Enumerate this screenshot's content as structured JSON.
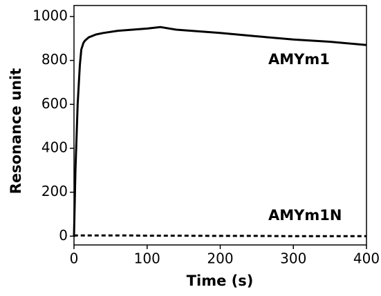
{
  "chart_data": {
    "type": "line",
    "xlabel": "Time (s)",
    "ylabel": "Resonance unit",
    "x": [
      0,
      2,
      5,
      8,
      10,
      13,
      15,
      20,
      30,
      40,
      60,
      80,
      100,
      118,
      140,
      200,
      250,
      300,
      350,
      400
    ],
    "series": [
      {
        "name": "AMYm1",
        "color": "#000000",
        "linestyle": "solid",
        "values": [
          0,
          300,
          600,
          780,
          850,
          880,
          890,
          905,
          918,
          925,
          935,
          940,
          945,
          952,
          940,
          925,
          910,
          895,
          885,
          870
        ]
      },
      {
        "name": "AMYm1N",
        "color": "#000000",
        "linestyle": "dashed",
        "values": [
          0,
          3,
          3,
          3,
          3,
          3,
          3,
          3,
          3,
          3,
          3,
          3,
          2,
          2,
          2,
          1,
          1,
          0,
          0,
          0
        ]
      }
    ],
    "xlim": [
      0,
      400
    ],
    "xticks": [
      0,
      100,
      200,
      300,
      400
    ],
    "ylim": [
      -40,
      1050
    ],
    "yticks": [
      0,
      200,
      400,
      600,
      800,
      1000
    ],
    "grid": false
  }
}
